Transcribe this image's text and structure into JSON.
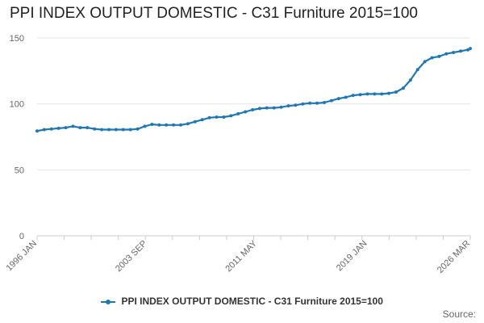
{
  "chart_data": {
    "type": "line",
    "title": "PPI INDEX OUTPUT DOMESTIC - C31 Furniture 2015=100",
    "xlabel": "",
    "ylabel": "",
    "ylim": [
      0,
      150
    ],
    "y_ticks": [
      0,
      50,
      100,
      150
    ],
    "x_ticks": [
      "1996 JAN",
      "2003 SEP",
      "2011 MAY",
      "2019 JAN",
      "2026 MAR"
    ],
    "grid": true,
    "legend_position": "bottom",
    "line_color": "#1f78b4",
    "series": [
      {
        "name": "PPI INDEX OUTPUT DOMESTIC - C31 Furniture 2015=100",
        "x": [
          "1996 JAN",
          "1996 JUL",
          "1997 JAN",
          "1997 JUL",
          "1998 JAN",
          "1998 JUL",
          "1999 JAN",
          "1999 JUL",
          "2000 JAN",
          "2000 JUL",
          "2001 JAN",
          "2001 JUL",
          "2002 JAN",
          "2002 JUL",
          "2003 JAN",
          "2003 JUL",
          "2004 JAN",
          "2004 JUL",
          "2005 JAN",
          "2005 JUL",
          "2006 JAN",
          "2006 JUL",
          "2007 JAN",
          "2007 JUL",
          "2008 JAN",
          "2008 JUL",
          "2009 JAN",
          "2009 JUL",
          "2010 JAN",
          "2010 JUL",
          "2011 JAN",
          "2011 JUL",
          "2012 JAN",
          "2012 JUL",
          "2013 JAN",
          "2013 JUL",
          "2014 JAN",
          "2014 JUL",
          "2015 JAN",
          "2015 JUL",
          "2016 JAN",
          "2016 JUL",
          "2017 JAN",
          "2017 JUL",
          "2018 JAN",
          "2018 JUL",
          "2019 JAN",
          "2019 JUL",
          "2020 JAN",
          "2020 JUL",
          "2021 JAN",
          "2021 JUL",
          "2022 JAN",
          "2022 JUL",
          "2023 JAN",
          "2023 JUL",
          "2024 JAN",
          "2024 JUL",
          "2025 JAN",
          "2025 JUL",
          "2026 JAN",
          "2026 MAR"
        ],
        "values": [
          79.5,
          80.5,
          81.0,
          81.5,
          82.0,
          83.0,
          82.0,
          82.0,
          81.0,
          80.5,
          80.5,
          80.5,
          80.5,
          80.5,
          81.0,
          83.0,
          84.5,
          84.0,
          84.0,
          84.0,
          84.0,
          85.0,
          86.5,
          88.0,
          89.5,
          90.0,
          90.0,
          91.0,
          92.5,
          94.0,
          95.5,
          96.5,
          97.0,
          97.0,
          97.5,
          98.5,
          99.0,
          100.0,
          100.5,
          100.5,
          101.0,
          102.5,
          104.0,
          105.0,
          106.5,
          107.0,
          107.5,
          107.5,
          107.5,
          108.0,
          109.0,
          112.0,
          118.0,
          126.0,
          132.0,
          135.0,
          136.0,
          138.0,
          139.0,
          140.0,
          141.0,
          142.0
        ]
      }
    ]
  },
  "source_label": "Source:"
}
